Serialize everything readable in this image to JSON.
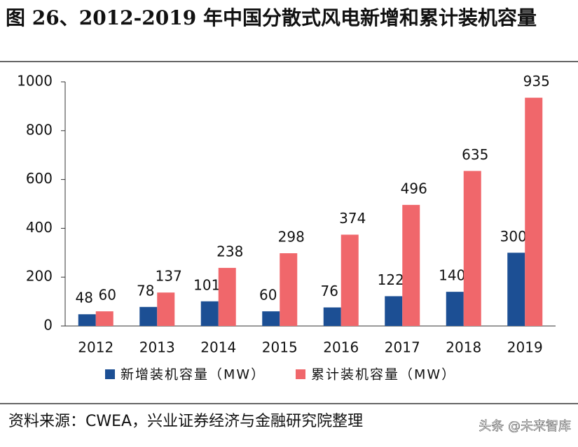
{
  "chart_data": {
    "type": "bar",
    "title": "图 26、2012-2019 年中国分散式风电新增和累计装机容量",
    "categories": [
      "2012",
      "2013",
      "2014",
      "2015",
      "2016",
      "2017",
      "2018",
      "2019"
    ],
    "series": [
      {
        "name": "新增装机容量（MW）",
        "color": "#1c4f94",
        "values": [
          48,
          78,
          101,
          60,
          76,
          122,
          140,
          300
        ]
      },
      {
        "name": "累计装机容量（MW）",
        "color": "#f0676b",
        "values": [
          60,
          137,
          238,
          298,
          374,
          496,
          635,
          935
        ]
      }
    ],
    "ylim": [
      0,
      1000
    ],
    "yticks": [
      0,
      200,
      400,
      600,
      800,
      1000
    ],
    "grid": false,
    "legend": "bottom",
    "source": "资料来源：CWEA，兴业证券经济与金融研究院整理",
    "watermark": "头条 @未来智库"
  }
}
